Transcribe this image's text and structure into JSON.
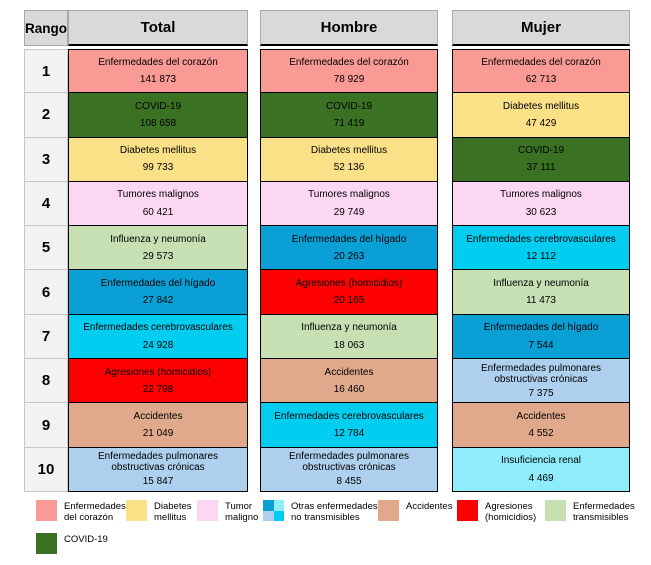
{
  "chart_data": {
    "type": "table",
    "title": "",
    "rank_header": "Rango",
    "group_headers": [
      "Total",
      "Hombre",
      "Mujer"
    ],
    "ranks": [
      "1",
      "2",
      "3",
      "4",
      "5",
      "6",
      "7",
      "8",
      "9",
      "10"
    ],
    "series": [
      {
        "name": "Total",
        "cells": [
          {
            "cause": "Enfermedades del corazón",
            "value": "141 873",
            "color": "heart"
          },
          {
            "cause": "COVID-19",
            "value": "108 658",
            "color": "covid"
          },
          {
            "cause": "Diabetes mellitus",
            "value": "99 733",
            "color": "diabetes"
          },
          {
            "cause": "Tumores malignos",
            "value": "60 421",
            "color": "tumor"
          },
          {
            "cause": "Influenza y neumonía",
            "value": "29 573",
            "color": "transmissible"
          },
          {
            "cause": "Enfermedades del hígado",
            "value": "27 842",
            "color": "liver"
          },
          {
            "cause": "Enfermedades cerebrovasculares",
            "value": "24 928",
            "color": "cerebro"
          },
          {
            "cause": "Agresiones (homicidios)",
            "value": "22 798",
            "color": "homicides"
          },
          {
            "cause": "Accidentes",
            "value": "21 049",
            "color": "accidents"
          },
          {
            "cause": "Enfermedades pulmonares obstructivas crónicas",
            "value": "15 847",
            "color": "copd"
          }
        ]
      },
      {
        "name": "Hombre",
        "cells": [
          {
            "cause": "Enfermedades del corazón",
            "value": "78 929",
            "color": "heart"
          },
          {
            "cause": "COVID-19",
            "value": "71 419",
            "color": "covid"
          },
          {
            "cause": "Diabetes mellitus",
            "value": "52 136",
            "color": "diabetes"
          },
          {
            "cause": "Tumores malignos",
            "value": "29 749",
            "color": "tumor"
          },
          {
            "cause": "Enfermedades del hígado",
            "value": "20 263",
            "color": "liver"
          },
          {
            "cause": "Agresiones (homicidios)",
            "value": "20 165",
            "color": "homicides"
          },
          {
            "cause": "Influenza y neumonía",
            "value": "18 063",
            "color": "transmissible"
          },
          {
            "cause": "Accidentes",
            "value": "16 460",
            "color": "accidents"
          },
          {
            "cause": "Enfermedades cerebrovasculares",
            "value": "12 784",
            "color": "cerebro"
          },
          {
            "cause": "Enfermedades pulmonares obstructivas crónicas",
            "value": "8 455",
            "color": "copd"
          }
        ]
      },
      {
        "name": "Mujer",
        "cells": [
          {
            "cause": "Enfermedades del corazón",
            "value": "62 713",
            "color": "heart"
          },
          {
            "cause": "Diabetes mellitus",
            "value": "47 429",
            "color": "diabetes"
          },
          {
            "cause": "COVID-19",
            "value": "37 111",
            "color": "covid"
          },
          {
            "cause": "Tumores malignos",
            "value": "30 623",
            "color": "tumor"
          },
          {
            "cause": "Enfermedades cerebrovasculares",
            "value": "12 112",
            "color": "cerebro"
          },
          {
            "cause": "Influenza y neumonía",
            "value": "11 473",
            "color": "transmissible"
          },
          {
            "cause": "Enfermedades del hígado",
            "value": "7 544",
            "color": "liver"
          },
          {
            "cause": "Enfermedades pulmonares obstructivas crónicas",
            "value": "7 375",
            "color": "copd"
          },
          {
            "cause": "Accidentes",
            "value": "4 552",
            "color": "accidents"
          },
          {
            "cause": "Insuficiencia renal",
            "value": "4 469",
            "color": "renal"
          }
        ]
      }
    ]
  },
  "colors": {
    "heart": "#FA9A94",
    "covid": "#3B7123",
    "diabetes": "#FAE187",
    "tumor": "#FBD7F3",
    "transmissible": "#C6E0B4",
    "liver": "#0AA0D6",
    "cerebro": "#00CDF0",
    "homicides": "#FE0000",
    "accidents": "#E0A98C",
    "copd": "#AECFEE",
    "renal": "#8FECFA",
    "header_bg": "#D9D9D9",
    "rank_bg": "#F2F2F2"
  },
  "legend": {
    "items": [
      {
        "label": "Enfermedades\ndel corazón",
        "color": "heart"
      },
      {
        "label": "Diabetes\nmellitus",
        "color": "diabetes"
      },
      {
        "label": "Tumor\nmaligno",
        "color": "tumor"
      },
      {
        "label": "Otras enfermedades\nno transmisibles",
        "quad": [
          "liver",
          "renal",
          "copd",
          "cerebro"
        ]
      },
      {
        "label": "Accidentes",
        "color": "accidents"
      },
      {
        "label": "Agresiones\n(homicidios)",
        "color": "homicides"
      },
      {
        "label": "Enfermedades\ntransmisibles",
        "color": "transmissible"
      },
      {
        "label": "COVID-19",
        "color": "covid"
      }
    ]
  }
}
